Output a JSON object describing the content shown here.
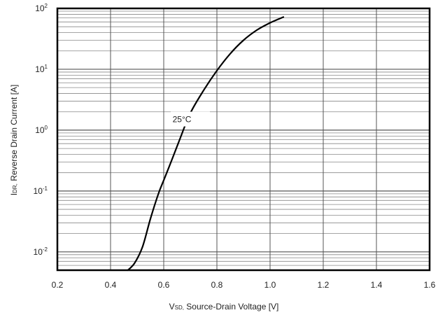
{
  "chart_data": {
    "type": "line",
    "title": "",
    "xlabel_main": "V",
    "xlabel_sub": "SD,",
    "xlabel_rest": " Source-Drain Voltage [V]",
    "ylabel_main": "I",
    "ylabel_sub": "DR,",
    "ylabel_rest": " Reverse Drain Current [A]",
    "xlim": [
      0.2,
      1.6
    ],
    "ylim": [
      0.005,
      100
    ],
    "y_scale": "log",
    "grid": true,
    "x_ticks": [
      {
        "value": 0.2,
        "label": "0.2"
      },
      {
        "value": 0.4,
        "label": "0.4"
      },
      {
        "value": 0.6,
        "label": "0.6"
      },
      {
        "value": 0.8,
        "label": "0.8"
      },
      {
        "value": 1.0,
        "label": "1.0"
      },
      {
        "value": 1.2,
        "label": "1.2"
      },
      {
        "value": 1.4,
        "label": "1.4"
      },
      {
        "value": 1.6,
        "label": "1.6"
      }
    ],
    "y_ticks": [
      {
        "value": 0.01,
        "base": "10",
        "exp": "-2"
      },
      {
        "value": 0.1,
        "base": "10",
        "exp": "-1"
      },
      {
        "value": 1,
        "base": "10",
        "exp": "0"
      },
      {
        "value": 10,
        "base": "10",
        "exp": "1"
      },
      {
        "value": 100,
        "base": "10",
        "exp": "2"
      }
    ],
    "annotation": {
      "text": "25°C",
      "x": 0.7,
      "y": 1.5
    },
    "series": [
      {
        "x": [
          0.465,
          0.49,
          0.52,
          0.55,
          0.58,
          0.6,
          0.63,
          0.66,
          0.7,
          0.75,
          0.8,
          0.85,
          0.9,
          0.95,
          1.0,
          1.05
        ],
        "y": [
          0.005,
          0.0065,
          0.012,
          0.035,
          0.09,
          0.15,
          0.32,
          0.7,
          1.9,
          4.5,
          9.5,
          18,
          30,
          44,
          58,
          72
        ]
      }
    ]
  }
}
